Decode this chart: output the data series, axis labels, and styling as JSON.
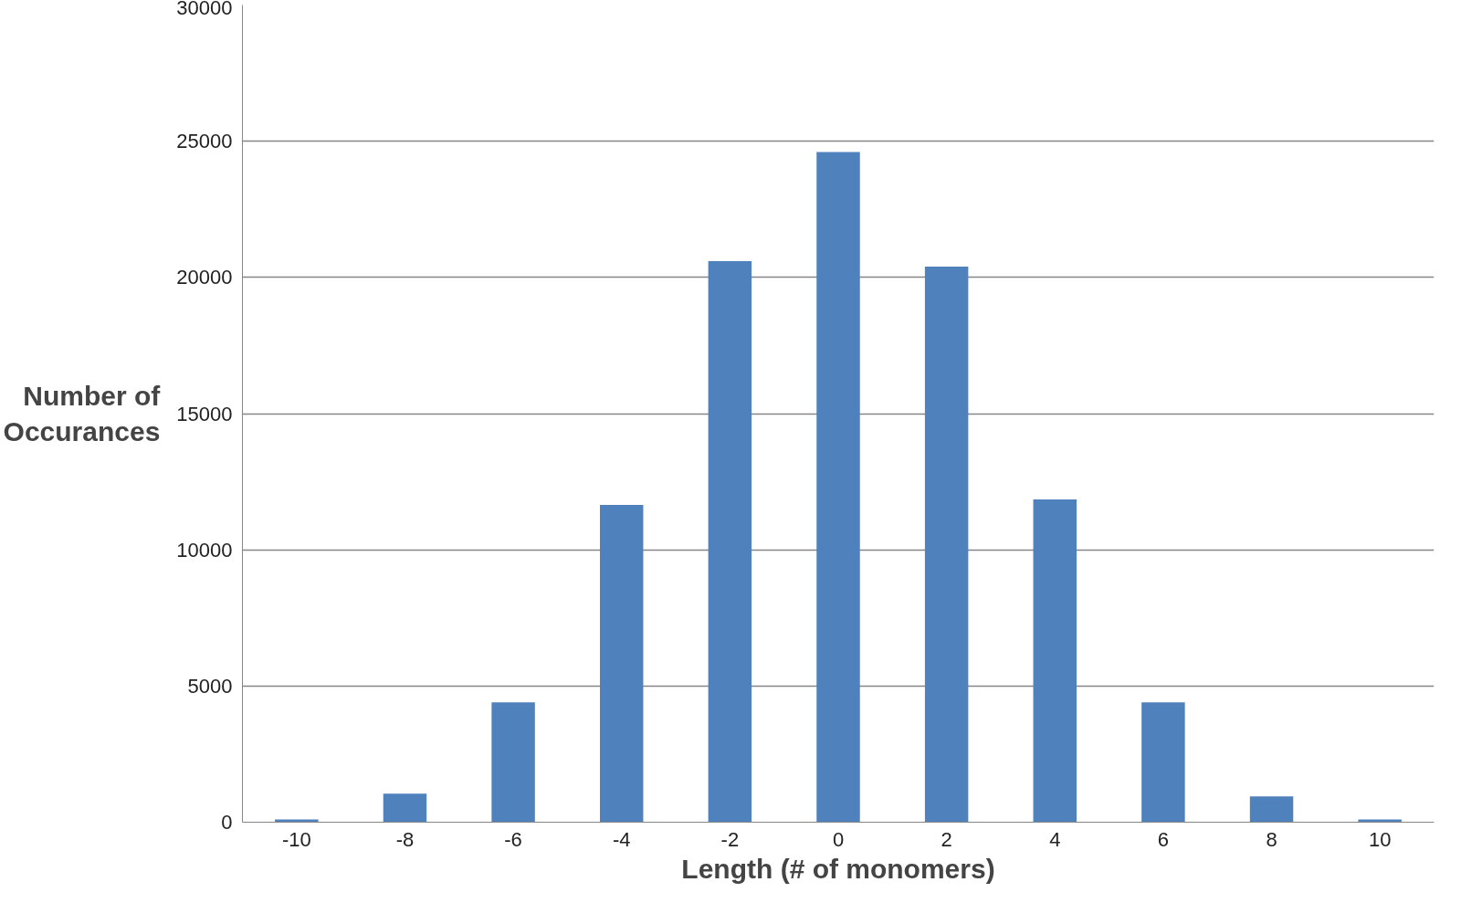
{
  "chart_data": {
    "type": "bar",
    "xlabel": "Length (# of monomers)",
    "ylabel": "Number of Occurances",
    "categories": [
      "-10",
      "-8",
      "-6",
      "-4",
      "-2",
      "0",
      "2",
      "4",
      "6",
      "8",
      "10"
    ],
    "values": [
      100,
      1050,
      4400,
      11650,
      20600,
      24600,
      20400,
      11850,
      4400,
      950,
      100
    ],
    "color": "#4f81bd",
    "ylim": [
      0,
      30000
    ],
    "yticks": [
      0,
      5000,
      10000,
      15000,
      20000,
      25000,
      30000
    ],
    "grid": "y"
  }
}
